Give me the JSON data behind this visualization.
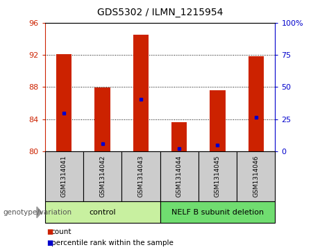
{
  "title": "GDS5302 / ILMN_1215954",
  "samples": [
    "GSM1314041",
    "GSM1314042",
    "GSM1314043",
    "GSM1314044",
    "GSM1314045",
    "GSM1314046"
  ],
  "red_values": [
    92.1,
    87.9,
    94.5,
    83.6,
    87.6,
    91.8
  ],
  "blue_values": [
    84.7,
    80.9,
    86.5,
    80.3,
    80.8,
    84.2
  ],
  "ylim_left": [
    80,
    96
  ],
  "ylim_right": [
    0,
    100
  ],
  "yticks_left": [
    80,
    84,
    88,
    92,
    96
  ],
  "yticks_right": [
    0,
    25,
    50,
    75,
    100
  ],
  "ytick_labels_right": [
    "0",
    "25",
    "50",
    "75",
    "100%"
  ],
  "groups": [
    {
      "label": "control",
      "indices": [
        0,
        1,
        2
      ],
      "color": "#c8f0a0"
    },
    {
      "label": "NELF B subunit deletion",
      "indices": [
        3,
        4,
        5
      ],
      "color": "#70dd70"
    }
  ],
  "genotype_label": "genotype/variation",
  "legend_red": "count",
  "legend_blue": "percentile rank within the sample",
  "bar_color": "#cc2200",
  "dot_color": "#0000cc",
  "sample_bg_color": "#cccccc",
  "plot_bg_color": "#ffffff",
  "left_tick_color": "#cc2200",
  "right_tick_color": "#0000cc"
}
